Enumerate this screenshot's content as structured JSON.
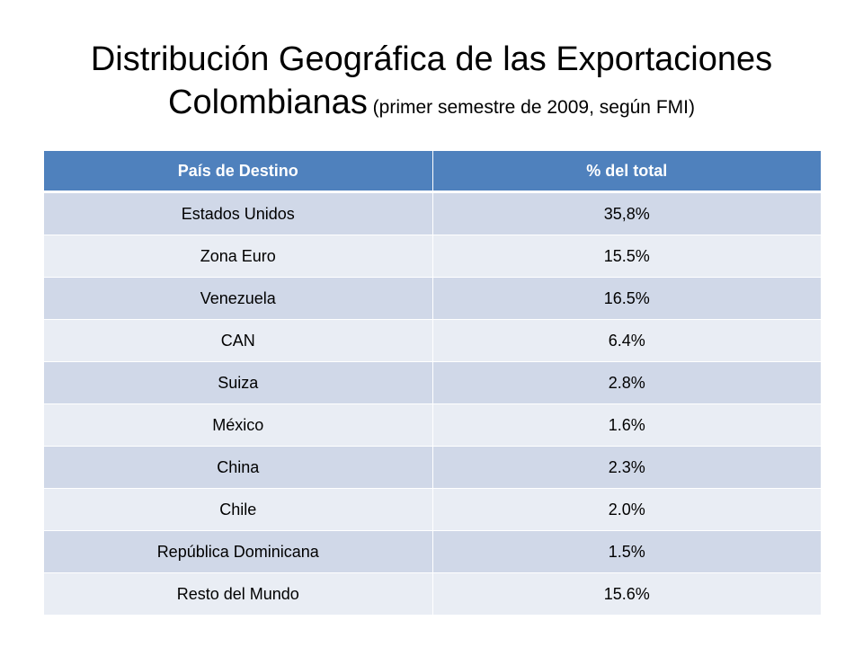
{
  "slide": {
    "title_line1": "Distribución Geográfica de las Exportaciones",
    "title_line2_main": "Colombianas",
    "title_line2_sub": " (primer semestre de 2009, según FMI)"
  },
  "table": {
    "headers": [
      "País de Destino",
      "% del total"
    ],
    "rows": [
      [
        "Estados Unidos",
        "35,8%"
      ],
      [
        "Zona Euro",
        "15.5%"
      ],
      [
        "Venezuela",
        "16.5%"
      ],
      [
        "CAN",
        "6.4%"
      ],
      [
        "Suiza",
        "2.8%"
      ],
      [
        "México",
        "1.6%"
      ],
      [
        "China",
        "2.3%"
      ],
      [
        "Chile",
        "2.0%"
      ],
      [
        "República Dominicana",
        "1.5%"
      ],
      [
        "Resto del Mundo",
        "15.6%"
      ]
    ]
  },
  "colors": {
    "header_bg": "#4f81bd",
    "row_odd_bg": "#d0d8e8",
    "row_even_bg": "#e9edf4"
  }
}
